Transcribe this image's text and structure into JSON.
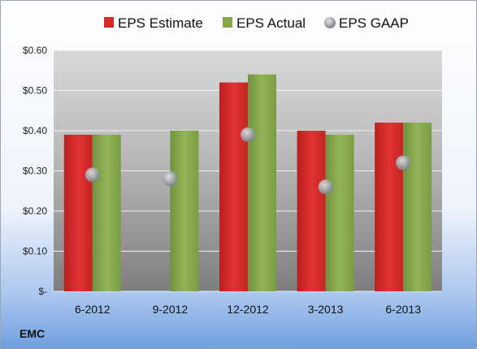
{
  "chart_data": {
    "type": "bar",
    "categories": [
      "6-2012",
      "9-2012",
      "12-2012",
      "3-2013",
      "6-2013"
    ],
    "series": [
      {
        "name": "EPS Estimate",
        "kind": "bar",
        "color": "#d42a2a",
        "values": [
          0.39,
          null,
          0.52,
          0.4,
          0.42
        ]
      },
      {
        "name": "EPS Actual",
        "kind": "bar",
        "color": "#86a84a",
        "values": [
          0.39,
          0.4,
          0.54,
          0.39,
          0.42
        ]
      },
      {
        "name": "EPS GAAP",
        "kind": "scatter",
        "color": "#9aa0a6",
        "values": [
          0.29,
          0.28,
          0.39,
          0.26,
          0.32
        ]
      }
    ],
    "y_ticks": [
      {
        "value": 0,
        "label": "$-"
      },
      {
        "value": 0.1,
        "label": "$0.10"
      },
      {
        "value": 0.2,
        "label": "$0.20"
      },
      {
        "value": 0.3,
        "label": "$0.30"
      },
      {
        "value": 0.4,
        "label": "$0.40"
      },
      {
        "value": 0.5,
        "label": "$0.50"
      },
      {
        "value": 0.6,
        "label": "$0.60"
      }
    ],
    "ylim": [
      0,
      0.6
    ],
    "grid": true,
    "legend_position": "top",
    "company": "EMC"
  }
}
